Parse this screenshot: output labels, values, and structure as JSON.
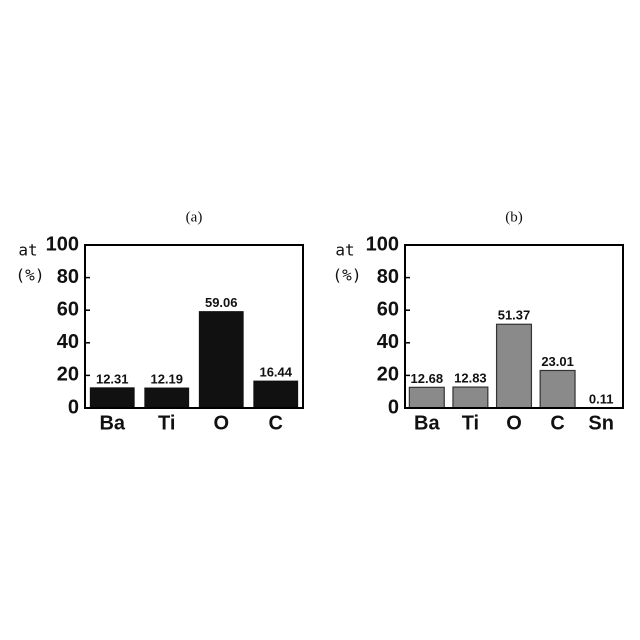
{
  "chart_data": [
    {
      "type": "bar",
      "title": "(a)",
      "y_label": "at",
      "y_unit": "(%)",
      "categories": [
        "Ba",
        "Ti",
        "O",
        "C"
      ],
      "values": [
        12.31,
        12.19,
        59.06,
        16.44
      ],
      "color": "#111111",
      "edgecolor": "#111111",
      "ylim": [
        0,
        100
      ],
      "yticks": [
        0,
        20,
        40,
        60,
        80,
        100
      ],
      "grid": false
    },
    {
      "type": "bar",
      "title": "(b)",
      "y_label": "at",
      "y_unit": "(%)",
      "categories": [
        "Ba",
        "Ti",
        "O",
        "C",
        "Sn"
      ],
      "values": [
        12.68,
        12.83,
        51.37,
        23.01,
        0.11
      ],
      "color": "#8a8a8a",
      "edgecolor": "#333333",
      "ylim": [
        0,
        100
      ],
      "yticks": [
        0,
        20,
        40,
        60,
        80,
        100
      ],
      "grid": false
    }
  ]
}
